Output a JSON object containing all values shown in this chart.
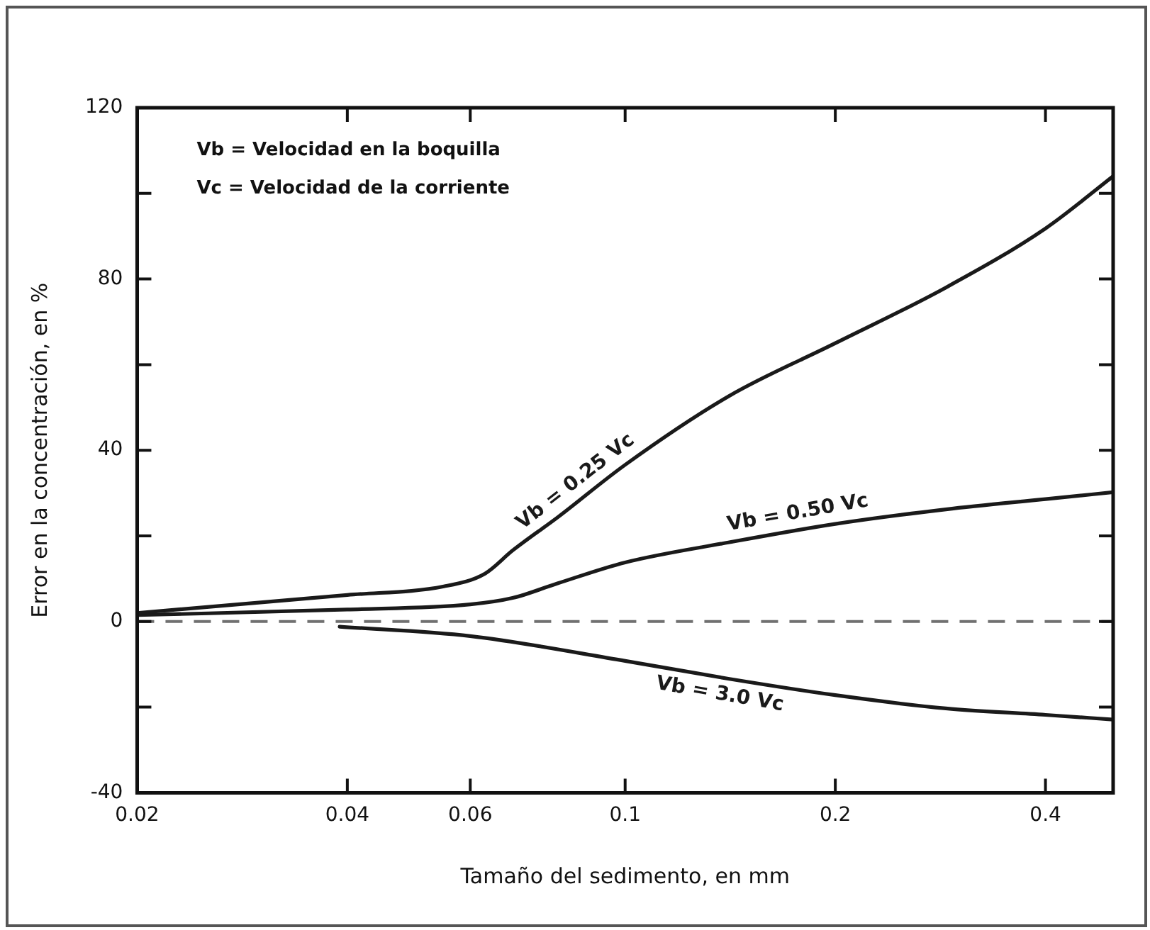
{
  "chart_data": {
    "type": "line",
    "xlabel": "Tamaño del sedimento, en mm",
    "ylabel": "Error en la concentración, en %",
    "log": "x",
    "xlim": [
      0.02,
      0.5
    ],
    "xticks": [
      0.02,
      0.04,
      0.06,
      0.1,
      0.2,
      0.4
    ],
    "ylim": [
      -40,
      120
    ],
    "yticks": [
      -40,
      {
        "value": -20,
        "label": null
      },
      0,
      {
        "value": 20,
        "label": null
      },
      40,
      {
        "value": 60,
        "label": null
      },
      80,
      {
        "value": 100,
        "label": null
      },
      120
    ],
    "grid": false,
    "legend": false,
    "marker": "none",
    "line_style": "solid",
    "annotations": [
      "Vb = Velocidad en la boquilla",
      "Vc = Velocidad de la corriente"
    ],
    "ref_lines": [
      {
        "axis": "y",
        "value": 0,
        "label": null,
        "color": "#707070",
        "line_style": "dashed"
      }
    ],
    "series": [
      {
        "name": "Vb = 0.25 Vc",
        "color": "#1a1a1a",
        "x": [
          0.02,
          0.04,
          0.055,
          0.063,
          0.069,
          0.08,
          0.1,
          0.141,
          0.2,
          0.288,
          0.4,
          0.5
        ],
        "values": [
          2,
          6.2,
          8.2,
          11.2,
          16.6,
          24.3,
          36.6,
          52.7,
          65,
          78,
          91.8,
          104
        ]
      },
      {
        "name": "Vb = 0.50 Vc",
        "color": "#1a1a1a",
        "x": [
          0.02,
          0.04,
          0.06,
          0.069,
          0.08,
          0.1,
          0.141,
          0.2,
          0.288,
          0.4,
          0.5
        ],
        "values": [
          1.5,
          2.8,
          4,
          5.5,
          8.9,
          13.8,
          18.5,
          22.8,
          26.2,
          28.6,
          30.2
        ]
      },
      {
        "name": "Vb = 3.0 Vc",
        "color": "#1a1a1a",
        "x": [
          0.039,
          0.06,
          0.1,
          0.141,
          0.2,
          0.288,
          0.4,
          0.5
        ],
        "values": [
          -1.2,
          -3.4,
          -9.2,
          -13.4,
          -17.2,
          -20.3,
          -21.8,
          -22.9
        ]
      }
    ]
  }
}
